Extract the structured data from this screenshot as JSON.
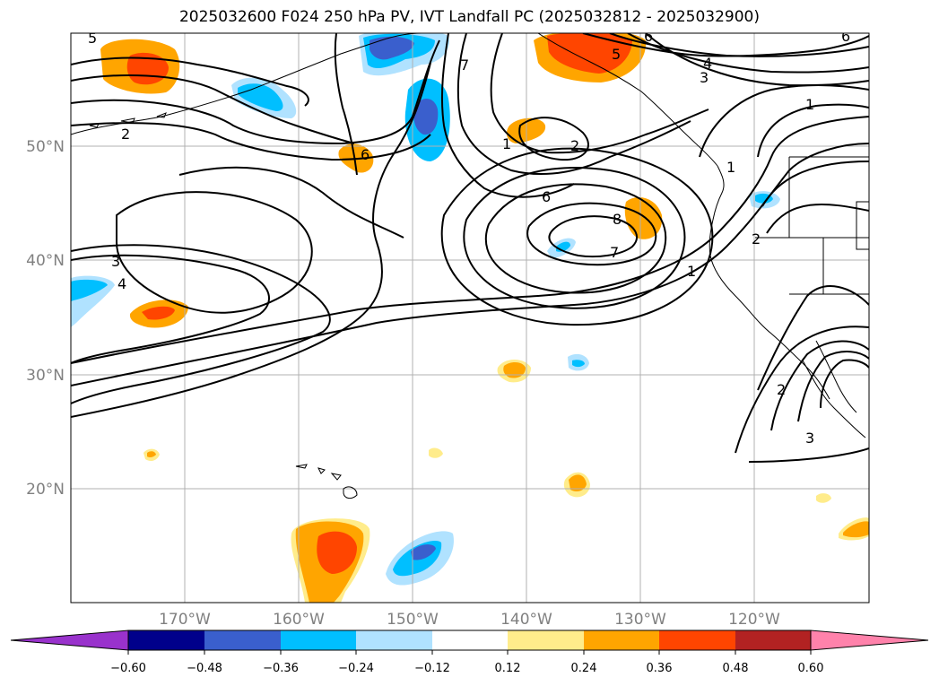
{
  "title": "2025032600 F024 250 hPa PV, IVT Landfall PC (2025032812 - 2025032900)",
  "lat_labels": [
    "50°N",
    "40°N",
    "30°N",
    "20°N"
  ],
  "lon_labels": [
    "170°W",
    "160°W",
    "150°W",
    "140°W",
    "130°W",
    "120°W"
  ],
  "colorbar": {
    "ticks": [
      "−0.60",
      "−0.48",
      "−0.36",
      "−0.24",
      "−0.12",
      "0.12",
      "0.24",
      "0.36",
      "0.48",
      "0.60"
    ],
    "colors": [
      "#9932cc",
      "#00008b",
      "#3a5fcd",
      "#00bfff",
      "#b0e2ff",
      "#ffffff",
      "#ffec8b",
      "#ffa500",
      "#ff4500",
      "#b22222",
      "#ff82ab"
    ]
  },
  "contour_labels": [
    "5",
    "6",
    "7",
    "5",
    "4",
    "3",
    "6",
    "2",
    "1",
    "6",
    "2",
    "1",
    "6",
    "8",
    "7",
    "1",
    "3",
    "4",
    "2",
    "3",
    "1",
    "2"
  ]
}
